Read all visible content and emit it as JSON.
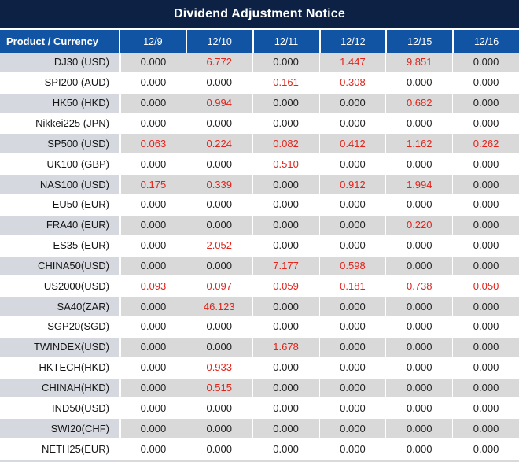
{
  "title": "Dividend Adjustment Notice",
  "colors": {
    "title_navy": "#0d2145",
    "header_blue": "#1254a4",
    "stripe_gray": "#d9d9d9",
    "product_stripe_gray": "#d5d8de",
    "value_red": "#e2231a",
    "value_black": "#1f1f1f"
  },
  "table": {
    "product_header": "Product / Currency",
    "date_headers": [
      "12/9",
      "12/10",
      "12/11",
      "12/12",
      "12/15",
      "12/16"
    ],
    "rows": [
      {
        "product": "DJ30 (USD)",
        "values": [
          "0.000",
          "6.772",
          "0.000",
          "1.447",
          "9.851",
          "0.000"
        ]
      },
      {
        "product": "SPI200 (AUD)",
        "values": [
          "0.000",
          "0.000",
          "0.161",
          "0.308",
          "0.000",
          "0.000"
        ]
      },
      {
        "product": "HK50 (HKD)",
        "values": [
          "0.000",
          "0.994",
          "0.000",
          "0.000",
          "0.682",
          "0.000"
        ]
      },
      {
        "product": "Nikkei225 (JPN)",
        "values": [
          "0.000",
          "0.000",
          "0.000",
          "0.000",
          "0.000",
          "0.000"
        ]
      },
      {
        "product": "SP500 (USD)",
        "values": [
          "0.063",
          "0.224",
          "0.082",
          "0.412",
          "1.162",
          "0.262"
        ]
      },
      {
        "product": "UK100 (GBP)",
        "values": [
          "0.000",
          "0.000",
          "0.510",
          "0.000",
          "0.000",
          "0.000"
        ]
      },
      {
        "product": "NAS100 (USD)",
        "values": [
          "0.175",
          "0.339",
          "0.000",
          "0.912",
          "1.994",
          "0.000"
        ]
      },
      {
        "product": "EU50 (EUR)",
        "values": [
          "0.000",
          "0.000",
          "0.000",
          "0.000",
          "0.000",
          "0.000"
        ]
      },
      {
        "product": "FRA40 (EUR)",
        "values": [
          "0.000",
          "0.000",
          "0.000",
          "0.000",
          "0.220",
          "0.000"
        ]
      },
      {
        "product": "ES35 (EUR)",
        "values": [
          "0.000",
          "2.052",
          "0.000",
          "0.000",
          "0.000",
          "0.000"
        ]
      },
      {
        "product": "CHINA50(USD)",
        "values": [
          "0.000",
          "0.000",
          "7.177",
          "0.598",
          "0.000",
          "0.000"
        ]
      },
      {
        "product": "US2000(USD)",
        "values": [
          "0.093",
          "0.097",
          "0.059",
          "0.181",
          "0.738",
          "0.050"
        ]
      },
      {
        "product": "SA40(ZAR)",
        "values": [
          "0.000",
          "46.123",
          "0.000",
          "0.000",
          "0.000",
          "0.000"
        ]
      },
      {
        "product": "SGP20(SGD)",
        "values": [
          "0.000",
          "0.000",
          "0.000",
          "0.000",
          "0.000",
          "0.000"
        ]
      },
      {
        "product": "TWINDEX(USD)",
        "values": [
          "0.000",
          "0.000",
          "1.678",
          "0.000",
          "0.000",
          "0.000"
        ]
      },
      {
        "product": "HKTECH(HKD)",
        "values": [
          "0.000",
          "0.933",
          "0.000",
          "0.000",
          "0.000",
          "0.000"
        ]
      },
      {
        "product": "CHINAH(HKD)",
        "values": [
          "0.000",
          "0.515",
          "0.000",
          "0.000",
          "0.000",
          "0.000"
        ]
      },
      {
        "product": "IND50(USD)",
        "values": [
          "0.000",
          "0.000",
          "0.000",
          "0.000",
          "0.000",
          "0.000"
        ]
      },
      {
        "product": "SWI20(CHF)",
        "values": [
          "0.000",
          "0.000",
          "0.000",
          "0.000",
          "0.000",
          "0.000"
        ]
      },
      {
        "product": "NETH25(EUR)",
        "values": [
          "0.000",
          "0.000",
          "0.000",
          "0.000",
          "0.000",
          "0.000"
        ]
      }
    ]
  }
}
